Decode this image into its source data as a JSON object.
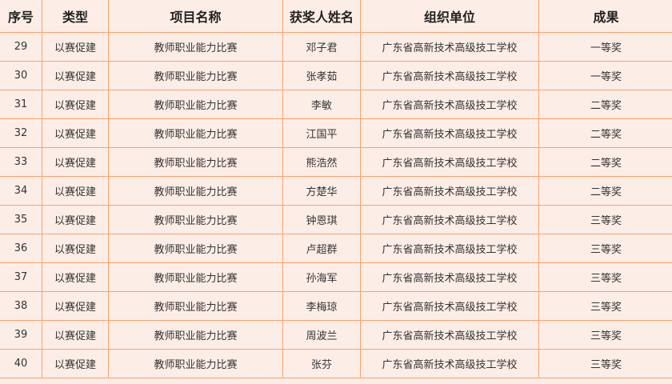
{
  "table": {
    "headers": [
      "序号",
      "类型",
      "项目名称",
      "获奖人姓名",
      "组织单位",
      "成果"
    ],
    "rows": [
      [
        "29",
        "以赛促建",
        "教师职业能力比赛",
        "邓子君",
        "广东省高新技术高级技工学校",
        "一等奖"
      ],
      [
        "30",
        "以赛促建",
        "教师职业能力比赛",
        "张孝茹",
        "广东省高新技术高级技工学校",
        "一等奖"
      ],
      [
        "31",
        "以赛促建",
        "教师职业能力比赛",
        "李敏",
        "广东省高新技术高级技工学校",
        "二等奖"
      ],
      [
        "32",
        "以赛促建",
        "教师职业能力比赛",
        "江国平",
        "广东省高新技术高级技工学校",
        "二等奖"
      ],
      [
        "33",
        "以赛促建",
        "教师职业能力比赛",
        "熊浩然",
        "广东省高新技术高级技工学校",
        "二等奖"
      ],
      [
        "34",
        "以赛促建",
        "教师职业能力比赛",
        "方楚华",
        "广东省高新技术高级技工学校",
        "二等奖"
      ],
      [
        "35",
        "以赛促建",
        "教师职业能力比赛",
        "钟恩琪",
        "广东省高新技术高级技工学校",
        "三等奖"
      ],
      [
        "36",
        "以赛促建",
        "教师职业能力比赛",
        "卢超群",
        "广东省高新技术高级技工学校",
        "三等奖"
      ],
      [
        "37",
        "以赛促建",
        "教师职业能力比赛",
        "孙海军",
        "广东省高新技术高级技工学校",
        "三等奖"
      ],
      [
        "38",
        "以赛促建",
        "教师职业能力比赛",
        "李梅琼",
        "广东省高新技术高级技工学校",
        "三等奖"
      ],
      [
        "39",
        "以赛促建",
        "教师职业能力比赛",
        "周波兰",
        "广东省高新技术高级技工学校",
        "三等奖"
      ],
      [
        "40",
        "以赛促建",
        "教师职业能力比赛",
        "张芬",
        "广东省高新技术高级技工学校",
        "三等奖"
      ]
    ]
  },
  "colors": {
    "background": "#fdede7",
    "border": "#f3a56e"
  }
}
